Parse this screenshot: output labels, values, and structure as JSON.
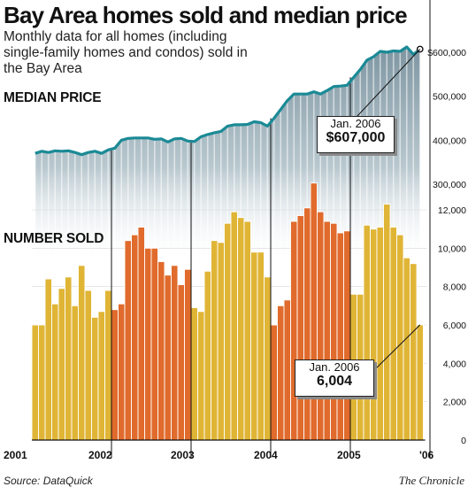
{
  "header": {
    "title": "Bay Area homes sold and median price",
    "subtitle": "Monthly data for all homes (including single-family homes and condos) sold in the Bay Area"
  },
  "sections": {
    "price_label": "MEDIAN PRICE",
    "sold_label": "NUMBER SOLD"
  },
  "callouts": {
    "price": {
      "date": "Jan. 2006",
      "value": "$607,000"
    },
    "sold": {
      "date": "Jan. 2006",
      "value": "6,004"
    }
  },
  "footer": {
    "source": "Source: DataQuick",
    "credit": "The Chronicle"
  },
  "colors": {
    "price_line": "#1b8a96",
    "bar_odd_year": "#e0b536",
    "bar_even_year": "#e06b2c",
    "price_fill_top": "#7e96a2",
    "price_fill_bottom": "#ffffff",
    "bar_separator": "#ffffff",
    "price_axis_label": "#111111"
  },
  "chart_data": [
    {
      "type": "line",
      "series": [
        {
          "name": "Median price",
          "values": [
            370000,
            375000,
            372000,
            376000,
            375000,
            376000,
            372000,
            367000,
            372000,
            375000,
            370000,
            378000,
            382000,
            400000,
            404000,
            405000,
            405000,
            405000,
            402000,
            403000,
            396000,
            403000,
            404000,
            398000,
            397000,
            408000,
            413000,
            417000,
            420000,
            432000,
            435000,
            435000,
            436000,
            442000,
            440000,
            432000,
            450000,
            470000,
            490000,
            505000,
            505000,
            505000,
            510000,
            505000,
            513000,
            522000,
            523000,
            525000,
            543000,
            561000,
            582000,
            590000,
            602000,
            600000,
            603000,
            602000,
            612000,
            595000,
            607000
          ]
        }
      ],
      "x_start": "2001-01",
      "x_end": "2006-01",
      "xtick_labels": [
        "2001",
        "2002",
        "2003",
        "2004",
        "2005",
        "'06"
      ],
      "ytick_labels": [
        "300,000",
        "400,000",
        "500,000",
        "$600,000"
      ],
      "ylim": [
        300000,
        610000
      ],
      "annotation": {
        "x": "2006-01",
        "y": 607000
      }
    },
    {
      "type": "bar",
      "series": [
        {
          "name": "Number sold",
          "values": [
            6000,
            6000,
            8400,
            7100,
            7900,
            8500,
            7000,
            9100,
            7800,
            6400,
            6700,
            7800,
            6800,
            7100,
            10400,
            10700,
            11100,
            10000,
            10000,
            9300,
            8600,
            9100,
            8100,
            8900,
            6900,
            6700,
            8800,
            10400,
            10300,
            11300,
            11900,
            11600,
            11400,
            9800,
            9800,
            8500,
            6000,
            7000,
            7300,
            11400,
            11700,
            12100,
            13400,
            11900,
            11400,
            11300,
            10800,
            10900,
            7600,
            7600,
            11200,
            11000,
            11100,
            12300,
            11100,
            10700,
            9500,
            9200,
            6004
          ]
        }
      ],
      "x_start": "2001-01",
      "x_end": "2006-01",
      "xtick_labels": [
        "2001",
        "2002",
        "2003",
        "2004",
        "2005",
        "'06"
      ],
      "ytick_labels": [
        "0",
        "2,000",
        "4,000",
        "6,000",
        "8,000",
        "10,000",
        "12,000"
      ],
      "ylim": [
        0,
        14000
      ],
      "annotation": {
        "x": "2006-01",
        "y": 6004
      }
    }
  ]
}
